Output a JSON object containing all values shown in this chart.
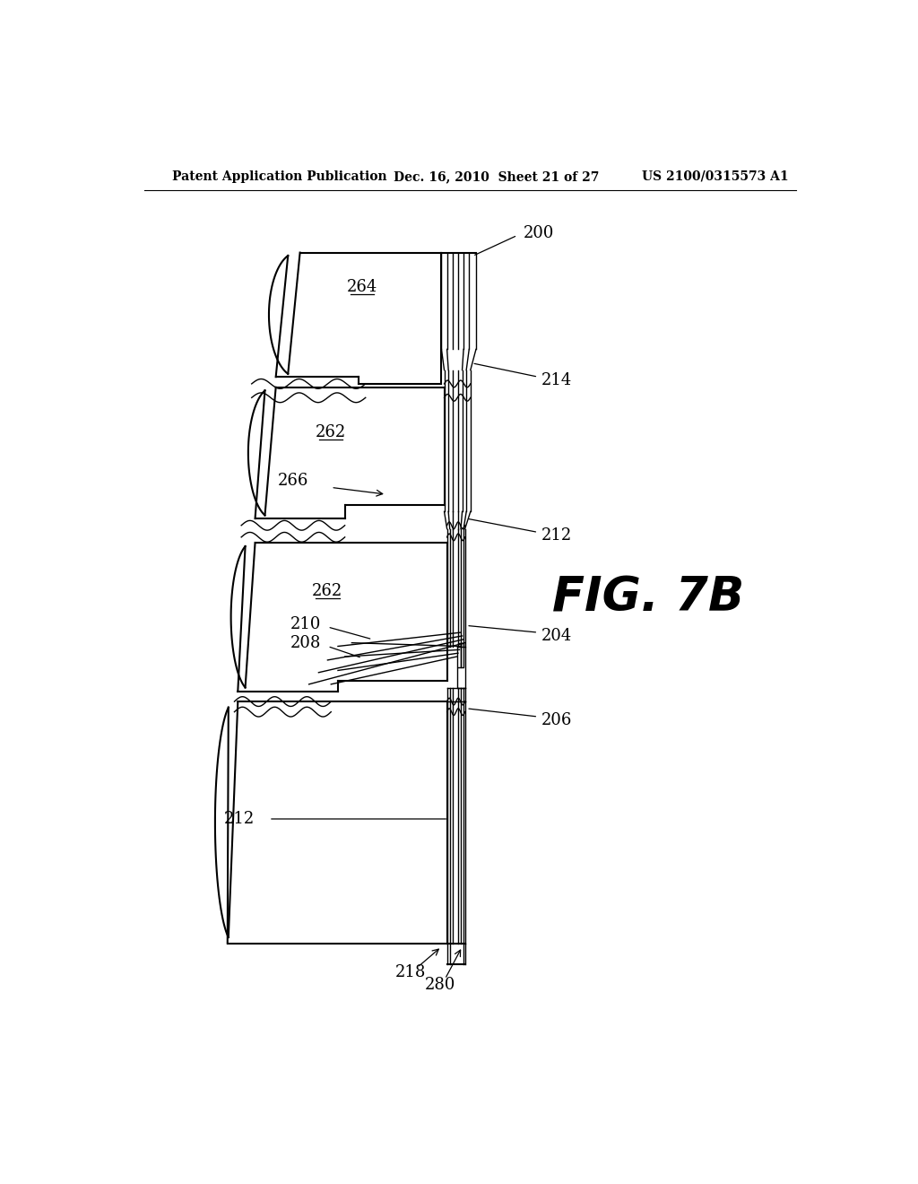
{
  "title_left": "Patent Application Publication",
  "title_mid": "Dec. 16, 2010  Sheet 21 of 27",
  "title_right": "US 2100/0315573 A1",
  "fig_label": "FIG. 7B",
  "background": "#ffffff",
  "line_color": "#000000"
}
